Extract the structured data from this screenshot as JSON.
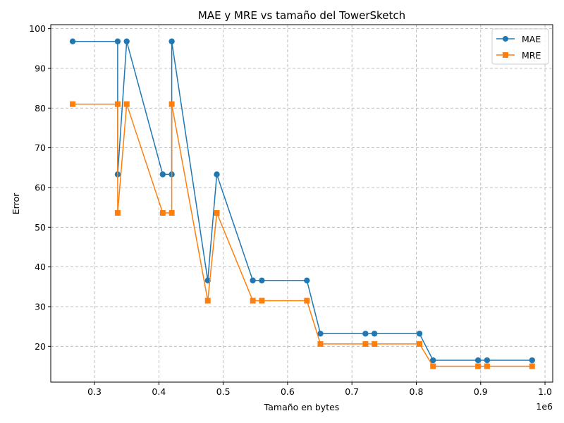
{
  "chart_data": {
    "type": "line",
    "title": "MAE y MRE vs tamaño del TowerSketch",
    "xlabel": "Tamaño en bytes",
    "ylabel": "Error",
    "x_offset_label": "1e6",
    "xlim": [
      0.232,
      1.012
    ],
    "ylim": [
      11.0,
      101.0
    ],
    "xticks": [
      0.3,
      0.4,
      0.5,
      0.6,
      0.7,
      0.8,
      0.9,
      1.0
    ],
    "xtick_labels": [
      "0.3",
      "0.4",
      "0.5",
      "0.6",
      "0.7",
      "0.8",
      "0.9",
      "1.0"
    ],
    "yticks": [
      20,
      30,
      40,
      50,
      60,
      70,
      80,
      90,
      100
    ],
    "ytick_labels": [
      "20",
      "30",
      "40",
      "50",
      "60",
      "70",
      "80",
      "90",
      "100"
    ],
    "grid": true,
    "legend_position": "top-right",
    "series": [
      {
        "name": "MAE",
        "color": "#1f77b4",
        "marker": "circle",
        "points": [
          [
            0.266,
            96.8
          ],
          [
            0.336,
            96.8
          ],
          [
            0.336,
            63.3
          ],
          [
            0.35,
            96.8
          ],
          [
            0.406,
            63.3
          ],
          [
            0.42,
            63.3
          ],
          [
            0.42,
            96.8
          ],
          [
            0.476,
            36.6
          ],
          [
            0.49,
            63.3
          ],
          [
            0.546,
            36.6
          ],
          [
            0.56,
            36.6
          ],
          [
            0.63,
            36.6
          ],
          [
            0.651,
            23.2
          ],
          [
            0.721,
            23.2
          ],
          [
            0.735,
            23.2
          ],
          [
            0.805,
            23.2
          ],
          [
            0.826,
            16.5
          ],
          [
            0.896,
            16.5
          ],
          [
            0.91,
            16.5
          ],
          [
            0.98,
            16.5
          ]
        ]
      },
      {
        "name": "MRE",
        "color": "#ff7f0e",
        "marker": "square",
        "points": [
          [
            0.266,
            81.0
          ],
          [
            0.336,
            81.0
          ],
          [
            0.336,
            53.6
          ],
          [
            0.35,
            81.0
          ],
          [
            0.406,
            53.6
          ],
          [
            0.42,
            53.6
          ],
          [
            0.42,
            81.0
          ],
          [
            0.476,
            31.5
          ],
          [
            0.49,
            53.6
          ],
          [
            0.546,
            31.5
          ],
          [
            0.56,
            31.5
          ],
          [
            0.63,
            31.5
          ],
          [
            0.651,
            20.6
          ],
          [
            0.721,
            20.6
          ],
          [
            0.735,
            20.6
          ],
          [
            0.805,
            20.6
          ],
          [
            0.826,
            15.0
          ],
          [
            0.896,
            15.0
          ],
          [
            0.91,
            15.0
          ],
          [
            0.98,
            15.0
          ]
        ]
      }
    ]
  }
}
